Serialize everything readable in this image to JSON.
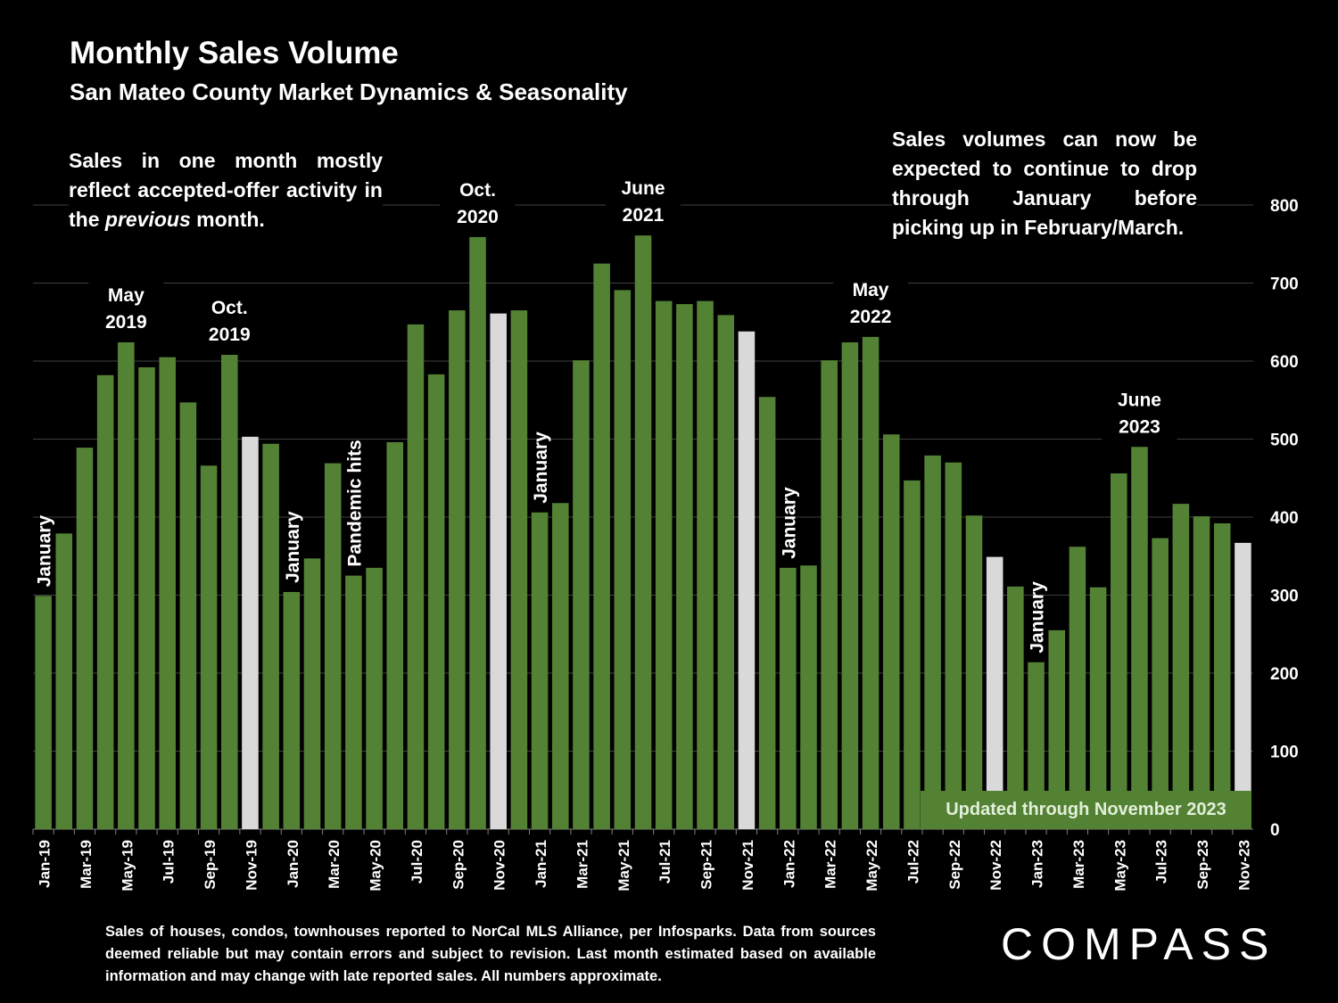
{
  "title": "Monthly Sales Volume",
  "subtitle": "San Mateo County Market Dynamics & Seasonality",
  "note_left_parts": [
    "Sales in one month mostly reflect accepted-offer activity in the ",
    "previous",
    " month."
  ],
  "note_right": "Sales volumes can now be expected to continue to drop through January before picking up in February/March.",
  "badge": "Updated through November 2023",
  "footnote": "Sales of houses, condos, townhouses reported to NorCal MLS Alliance, per Infosparks. Data from sources deemed reliable but may contain errors and subject to revision. Last month estimated based on available information and may change with late reported sales. All numbers approximate.",
  "logo": "COMPASS",
  "colors": {
    "bar": "#548235",
    "highlight": "#d9d9d9",
    "grid": "#404040"
  },
  "chart_data": {
    "type": "bar",
    "title": "Monthly Sales Volume",
    "ylim": [
      0,
      800
    ],
    "yticks": [
      0,
      100,
      200,
      300,
      400,
      500,
      600,
      700,
      800
    ],
    "y_axis_side": "right",
    "grid": true,
    "categories": [
      "Jan-19",
      "Feb-19",
      "Mar-19",
      "Apr-19",
      "May-19",
      "Jun-19",
      "Jul-19",
      "Aug-19",
      "Sep-19",
      "Oct-19",
      "Nov-19",
      "Dec-19",
      "Jan-20",
      "Feb-20",
      "Mar-20",
      "Apr-20",
      "May-20",
      "Jun-20",
      "Jul-20",
      "Aug-20",
      "Sep-20",
      "Oct-20",
      "Nov-20",
      "Dec-20",
      "Jan-21",
      "Feb-21",
      "Mar-21",
      "Apr-21",
      "May-21",
      "Jun-21",
      "Jul-21",
      "Aug-21",
      "Sep-21",
      "Oct-21",
      "Nov-21",
      "Dec-21",
      "Jan-22",
      "Feb-22",
      "Mar-22",
      "Apr-22",
      "May-22",
      "Jun-22",
      "Jul-22",
      "Aug-22",
      "Sep-22",
      "Oct-22",
      "Nov-22",
      "Dec-22",
      "Jan-23",
      "Feb-23",
      "Mar-23",
      "Apr-23",
      "May-23",
      "Jun-23",
      "Jul-23",
      "Aug-23",
      "Sep-23",
      "Oct-23",
      "Nov-23"
    ],
    "values": [
      299,
      379,
      489,
      582,
      624,
      592,
      605,
      547,
      466,
      608,
      503,
      494,
      304,
      347,
      469,
      325,
      335,
      496,
      647,
      583,
      665,
      759,
      661,
      665,
      406,
      418,
      601,
      725,
      691,
      761,
      677,
      673,
      677,
      659,
      638,
      554,
      335,
      338,
      601,
      624,
      631,
      506,
      447,
      479,
      470,
      402,
      349,
      311,
      214,
      255,
      362,
      310,
      456,
      490,
      373,
      417,
      401,
      392,
      367
    ],
    "highlighted": [
      "Nov-19",
      "Nov-20",
      "Nov-21",
      "Nov-22",
      "Nov-23"
    ],
    "annotations": [
      {
        "text": "January",
        "at": "Jan-19",
        "rotated": true
      },
      {
        "text": "May 2019",
        "at": "May-19",
        "rotated": false
      },
      {
        "text": "Oct. 2019",
        "at": "Oct-19",
        "rotated": false
      },
      {
        "text": "January",
        "at": "Jan-20",
        "rotated": true
      },
      {
        "text": "Pandemic hits",
        "at": "Apr-20",
        "rotated": true
      },
      {
        "text": "Oct. 2020",
        "at": "Oct-20",
        "rotated": false
      },
      {
        "text": "January",
        "at": "Jan-21",
        "rotated": true
      },
      {
        "text": "June 2021",
        "at": "Jun-21",
        "rotated": false
      },
      {
        "text": "January",
        "at": "Jan-22",
        "rotated": true
      },
      {
        "text": "May 2022",
        "at": "May-22",
        "rotated": false
      },
      {
        "text": "January",
        "at": "Jan-23",
        "rotated": true
      },
      {
        "text": "June 2023",
        "at": "Jun-23",
        "rotated": false
      }
    ]
  }
}
